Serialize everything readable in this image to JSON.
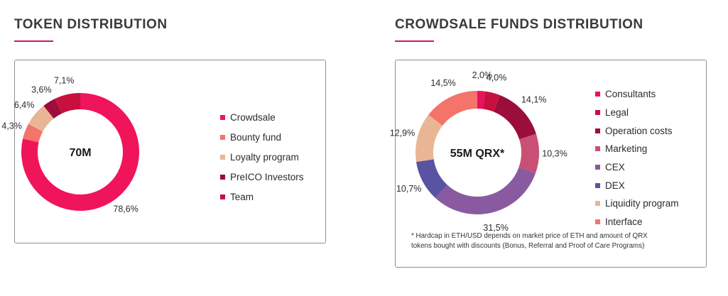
{
  "left": {
    "title": "TOKEN DISTRIBUTION"
  },
  "right": {
    "title": "CROWDSALE FUNDS DISTRIBUTION",
    "footnote_line1": "* Hardcap in ETH/USD depends on market price of ETH and amount of QRX",
    "footnote_line2": "tokens bought with discounts (Bonus, Referral and Proof of Care Programs)"
  },
  "colors": {
    "accent": "#d4126b",
    "title": "#3a3a3a",
    "border": "#8f8f8f"
  },
  "chart_data": [
    {
      "type": "pie",
      "donut": true,
      "center_label": "70M",
      "legend_placement": "right",
      "slices": [
        {
          "label": "Crowdsale",
          "value": 78.6,
          "value_label": "78,6%",
          "color": "#f0145a"
        },
        {
          "label": "Bounty fund",
          "value": 4.3,
          "value_label": "4,3%",
          "color": "#f4736a"
        },
        {
          "label": "Loyalty program",
          "value": 6.4,
          "value_label": "6,4%",
          "color": "#e9b695"
        },
        {
          "label": "PreICO Investors",
          "value": 3.6,
          "value_label": "3,6%",
          "color": "#9b0d3a"
        },
        {
          "label": "Team",
          "value": 7.1,
          "value_label": "7,1%",
          "color": "#c8103f"
        }
      ]
    },
    {
      "type": "pie",
      "donut": true,
      "center_label": "55M QRX*",
      "legend_placement": "right",
      "slices": [
        {
          "label": "Consultants",
          "value": 2.0,
          "value_label": "2,0%",
          "color": "#e8125d"
        },
        {
          "label": "Legal",
          "value": 4.0,
          "value_label": "4,0%",
          "color": "#c8103f"
        },
        {
          "label": "Operation costs",
          "value": 14.1,
          "value_label": "14,1%",
          "color": "#9b0d3a"
        },
        {
          "label": "Marketing",
          "value": 10.3,
          "value_label": "10,3%",
          "color": "#c85075"
        },
        {
          "label": "CEX",
          "value": 31.5,
          "value_label": "31,5%",
          "color": "#8a5aa0"
        },
        {
          "label": "DEX",
          "value": 10.7,
          "value_label": "10,7%",
          "color": "#5a53a2"
        },
        {
          "label": "Liquidity program",
          "value": 12.9,
          "value_label": "12,9%",
          "color": "#e9b695"
        },
        {
          "label": "Interface",
          "value": 14.5,
          "value_label": "14,5%",
          "color": "#f4736a"
        }
      ]
    }
  ]
}
